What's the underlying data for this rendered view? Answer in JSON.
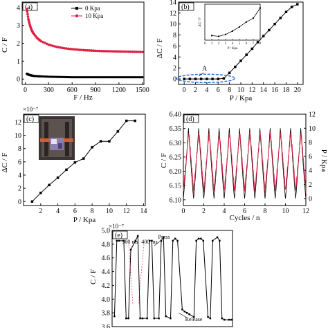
{
  "chart_data": [
    {
      "panel": "(a)",
      "type": "scatter",
      "xlabel": "F / Hz",
      "ylabel": "C / F",
      "xlim": [
        0,
        1500
      ],
      "ylim": [
        0,
        4
      ],
      "xticks": [
        0,
        300,
        600,
        900,
        1200,
        1500
      ],
      "yticks": [
        0,
        1,
        2,
        3,
        4
      ],
      "legend": "top-center",
      "series": [
        {
          "name": "0 Kpa",
          "color": "#000000",
          "marker": "square",
          "x": [
            20,
            40,
            60,
            80,
            100,
            150,
            200,
            300,
            400,
            500,
            600,
            700,
            800,
            900,
            1000,
            1100,
            1200,
            1300,
            1400,
            1500
          ],
          "y": [
            0.3,
            0.25,
            0.22,
            0.2,
            0.18,
            0.16,
            0.15,
            0.13,
            0.12,
            0.11,
            0.1,
            0.1,
            0.1,
            0.1,
            0.1,
            0.1,
            0.1,
            0.1,
            0.1,
            0.1
          ]
        },
        {
          "name": "10 Kpa",
          "color": "#dd2244",
          "marker": "circle",
          "x": [
            20,
            40,
            60,
            80,
            100,
            150,
            200,
            300,
            400,
            500,
            600,
            700,
            800,
            900,
            1000,
            1100,
            1200,
            1300,
            1400,
            1500
          ],
          "y": [
            3.9,
            3.35,
            3.0,
            2.75,
            2.58,
            2.3,
            2.12,
            1.92,
            1.8,
            1.72,
            1.67,
            1.63,
            1.6,
            1.58,
            1.56,
            1.55,
            1.54,
            1.53,
            1.52,
            1.51
          ]
        }
      ]
    },
    {
      "panel": "(b)",
      "type": "line",
      "xlabel": "P / Kpa",
      "ylabel": "ΔC / F",
      "xlim": [
        -1,
        21
      ],
      "ylim": [
        -1,
        14
      ],
      "xticks": [
        0,
        2,
        4,
        6,
        8,
        10,
        12,
        14,
        16,
        18,
        20
      ],
      "yticks": [
        0,
        2,
        4,
        6,
        8,
        10,
        12,
        14
      ],
      "annotation": "A",
      "series": [
        {
          "x": [
            0,
            1,
            2,
            3,
            4,
            5,
            6,
            7,
            8,
            9,
            10,
            11,
            12,
            13,
            14,
            15,
            16,
            17,
            18,
            19,
            20
          ],
          "y": [
            0,
            0,
            0,
            0,
            0,
            0,
            0,
            0.1,
            1.1,
            2.2,
            3.3,
            4.4,
            5.5,
            6.7,
            7.8,
            8.9,
            10.0,
            11.1,
            12.2,
            13.1,
            13.6
          ]
        }
      ],
      "inset": {
        "xlabel": "P / Kpa",
        "ylabel": "ΔC / F",
        "xlim": [
          0,
          8
        ],
        "xticks": [
          0,
          1,
          2,
          3,
          4,
          5,
          6,
          7,
          8
        ],
        "x": [
          1,
          2,
          3,
          4,
          5,
          6,
          7,
          8
        ],
        "y": [
          0.12,
          0.1,
          0.15,
          0.24,
          0.35,
          0.48,
          0.58,
          0.85
        ]
      }
    },
    {
      "panel": "(c)",
      "type": "line",
      "xlabel": "P / Kpa",
      "ylabel": "ΔC / F",
      "yscale_label": "×10⁻⁷",
      "xlim": [
        0,
        14
      ],
      "ylim": [
        0,
        13
      ],
      "xticks": [
        2,
        4,
        6,
        8,
        10,
        12,
        14
      ],
      "yticks": [
        0,
        2,
        4,
        6,
        8,
        10,
        12
      ],
      "series": [
        {
          "x": [
            1,
            2,
            3,
            4,
            5,
            6,
            7,
            8,
            9,
            10,
            11,
            12,
            13
          ],
          "y": [
            0,
            1.3,
            2.5,
            3.6,
            4.8,
            5.9,
            6.5,
            8.2,
            9.1,
            9.1,
            10.6,
            12.2,
            12.2
          ]
        }
      ]
    },
    {
      "panel": "(d)",
      "type": "line",
      "xlabel": "Cycles / n",
      "ylabel": "C / F",
      "y2label": "P / Kpa",
      "yscale_label": "×10⁻⁸",
      "xlim": [
        0,
        12
      ],
      "ylim": [
        6.08,
        6.4
      ],
      "y2lim": [
        -1,
        12
      ],
      "xticks": [
        0,
        2,
        4,
        6,
        8,
        10,
        12
      ],
      "yticks": [
        6.1,
        6.15,
        6.2,
        6.25,
        6.3,
        6.35,
        6.4
      ],
      "y2ticks": [
        0,
        2,
        4,
        6,
        8,
        10,
        12
      ],
      "cycles": 12,
      "series": [
        {
          "name": "C",
          "color": "#dd2244",
          "min": 6.11,
          "max": 6.33
        },
        {
          "name": "P",
          "color": "#000000",
          "min": 0,
          "max": 10
        }
      ]
    },
    {
      "panel": "(e)",
      "type": "line",
      "xlabel": "",
      "ylabel": "C / F",
      "yscale_label": "×10⁻⁷",
      "ylim": [
        3.6,
        5.0
      ],
      "yticks": [
        3.6,
        3.8,
        4.0,
        4.2,
        4.4,
        4.6,
        4.8,
        5.0
      ],
      "annotations": [
        "300 ms",
        "400 ms",
        "Press",
        "Release"
      ],
      "series": [
        {
          "x": [
            0,
            1,
            2,
            4,
            5,
            6,
            7,
            9,
            10,
            11,
            12,
            14,
            15,
            16,
            17,
            19,
            20,
            21,
            22,
            24,
            25,
            26,
            27,
            29,
            30,
            31,
            32,
            34,
            35,
            36,
            37,
            38,
            40,
            41,
            42,
            44,
            45,
            46,
            47,
            49,
            50
          ],
          "y": [
            3.75,
            4.85,
            4.85,
            4.85,
            3.72,
            3.72,
            4.72,
            4.85,
            4.92,
            3.72,
            3.72,
            3.72,
            4.85,
            4.85,
            3.72,
            3.72,
            4.85,
            4.9,
            3.75,
            3.72,
            4.85,
            4.88,
            4.85,
            3.85,
            3.82,
            3.8,
            3.78,
            3.74,
            4.85,
            4.88,
            4.88,
            4.85,
            3.74,
            3.72,
            4.85,
            4.9,
            4.85,
            3.72,
            3.7,
            3.7,
            3.7
          ]
        }
      ]
    }
  ]
}
